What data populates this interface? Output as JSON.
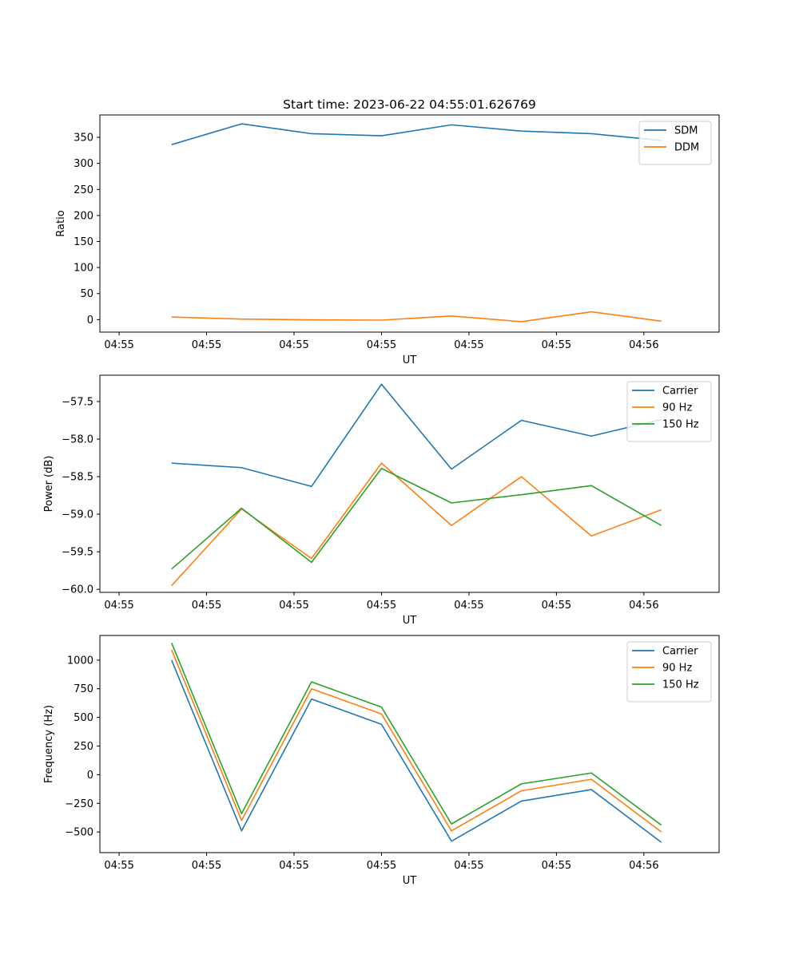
{
  "chart_data": [
    {
      "type": "line",
      "title": "Start time: 2023-06-22 04:55:01.626769",
      "xlabel": "UT",
      "ylabel": "Ratio",
      "x": [
        "04:55:01.9",
        "04:55:02.3",
        "04:55:02.7",
        "04:55:03.1",
        "04:55:03.5",
        "04:55:03.9",
        "04:55:04.3",
        "04:55:04.7"
      ],
      "xticks": [
        "04:55",
        "04:55",
        "04:55",
        "04:55",
        "04:55",
        "04:55",
        "04:56"
      ],
      "yticks": [
        0,
        50,
        100,
        150,
        200,
        250,
        300,
        350
      ],
      "ylim": [
        -24,
        393
      ],
      "legend": "upper right",
      "grid": false,
      "series": [
        {
          "name": "SDM",
          "color": "#1f77b4",
          "values": [
            336,
            376,
            357,
            353,
            374,
            362,
            357,
            344
          ]
        },
        {
          "name": "DDM",
          "color": "#ff7f0e",
          "values": [
            5,
            1,
            -0.5,
            -1,
            7,
            -4,
            15,
            -3
          ]
        }
      ]
    },
    {
      "type": "line",
      "title": "",
      "xlabel": "UT",
      "ylabel": "Power (dB)",
      "x": [
        "04:55:01.9",
        "04:55:02.3",
        "04:55:02.7",
        "04:55:03.1",
        "04:55:03.5",
        "04:55:03.9",
        "04:55:04.3",
        "04:55:04.7"
      ],
      "xticks": [
        "04:55",
        "04:55",
        "04:55",
        "04:55",
        "04:55",
        "04:55",
        "04:56"
      ],
      "yticks": [
        -60.0,
        -59.5,
        -59.0,
        -58.5,
        -58.0,
        -57.5
      ],
      "ytick_labels": [
        "−60.0",
        "−59.5",
        "−59.0",
        "−58.5",
        "−58.0",
        "−57.5"
      ],
      "ylim": [
        -60.04,
        -57.15
      ],
      "legend": "upper right",
      "grid": false,
      "series": [
        {
          "name": "Carrier",
          "color": "#1f77b4",
          "values": [
            -58.32,
            -58.38,
            -58.63,
            -57.27,
            -58.4,
            -57.75,
            -57.96,
            -57.74
          ]
        },
        {
          "name": "90 Hz",
          "color": "#ff7f0e",
          "values": [
            -59.95,
            -58.93,
            -59.59,
            -58.32,
            -59.15,
            -58.5,
            -59.29,
            -58.94
          ]
        },
        {
          "name": "150 Hz",
          "color": "#2ca02c",
          "values": [
            -59.73,
            -58.92,
            -59.64,
            -58.39,
            -58.85,
            -58.74,
            -58.62,
            -59.15
          ]
        }
      ]
    },
    {
      "type": "line",
      "title": "",
      "xlabel": "UT",
      "ylabel": "Frequency (Hz)",
      "x": [
        "04:55:01.9",
        "04:55:02.3",
        "04:55:02.7",
        "04:55:03.1",
        "04:55:03.5",
        "04:55:03.9",
        "04:55:04.3",
        "04:55:04.7"
      ],
      "xticks": [
        "04:55",
        "04:55",
        "04:55",
        "04:55",
        "04:55",
        "04:55",
        "04:56"
      ],
      "yticks": [
        -500,
        -250,
        0,
        250,
        500,
        750,
        1000
      ],
      "ytick_labels": [
        "−500",
        "−250",
        "0",
        "250",
        "500",
        "750",
        "1000"
      ],
      "ylim": [
        -680,
        1215
      ],
      "legend": "upper right",
      "grid": false,
      "series": [
        {
          "name": "Carrier",
          "color": "#1f77b4",
          "values": [
            1000,
            -490,
            660,
            440,
            -580,
            -230,
            -130,
            -590
          ]
        },
        {
          "name": "90 Hz",
          "color": "#ff7f0e",
          "values": [
            1090,
            -400,
            750,
            530,
            -490,
            -140,
            -40,
            -500
          ]
        },
        {
          "name": "150 Hz",
          "color": "#2ca02c",
          "values": [
            1150,
            -340,
            810,
            590,
            -430,
            -80,
            15,
            -440
          ]
        }
      ]
    }
  ]
}
